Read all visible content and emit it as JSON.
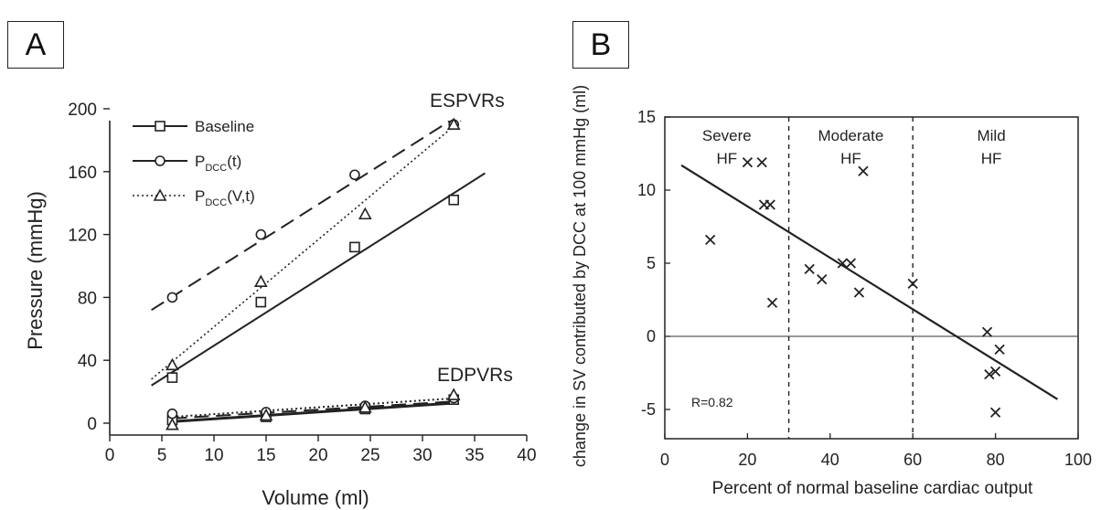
{
  "panels": {
    "a_label": "A",
    "b_label": "B"
  },
  "chart_data": [
    {
      "type": "scatter",
      "xlabel": "Volume (ml)",
      "ylabel": "Pressure (mmHg)",
      "xlim": [
        0,
        40
      ],
      "ylim": [
        0,
        200
      ],
      "x_ticks": [
        "0",
        "5",
        "10",
        "15",
        "20",
        "25",
        "30",
        "35",
        "40"
      ],
      "y_ticks": [
        "0",
        "40",
        "80",
        "120",
        "160",
        "200"
      ],
      "annotations": {
        "top": "ESPVRs",
        "bottom": "EDPVRs"
      },
      "legend": {
        "placement": "top-left",
        "entries": [
          "Baseline",
          "P",
          "(t)",
          "P",
          "(V,t)"
        ],
        "subscript": "DCC"
      },
      "series": [
        {
          "name": "Baseline",
          "marker": "square",
          "line": "solid",
          "points": [
            [
              6,
              29
            ],
            [
              14.5,
              77
            ],
            [
              23.5,
              112
            ],
            [
              33,
              142
            ]
          ],
          "fit": [
            [
              4,
              24
            ],
            [
              36,
              159
            ]
          ],
          "edpvr_points": [
            [
              6,
              2
            ],
            [
              15,
              4
            ],
            [
              24.5,
              9
            ],
            [
              33,
              15
            ]
          ],
          "edpvr_fit": [
            [
              6,
              1
            ],
            [
              33.5,
              13
            ]
          ]
        },
        {
          "name": "P(t)",
          "marker": "circle",
          "line": "dashed",
          "points": [
            [
              6,
              80
            ],
            [
              14.5,
              120
            ],
            [
              23.5,
              158
            ],
            [
              33,
              190
            ]
          ],
          "fit": [
            [
              4,
              72
            ],
            [
              34,
              198
            ]
          ],
          "edpvr_points": [
            [
              6,
              6
            ],
            [
              15,
              7
            ],
            [
              24.5,
              11
            ],
            [
              33,
              16
            ]
          ],
          "edpvr_fit": [
            [
              6,
              3
            ],
            [
              33.5,
              14
            ]
          ]
        },
        {
          "name": "P(V,t)",
          "marker": "triangle",
          "line": "dotted",
          "points": [
            [
              6,
              37
            ],
            [
              14.5,
              90
            ],
            [
              24.5,
              133
            ],
            [
              33,
              190
            ]
          ],
          "fit": [
            [
              4,
              28
            ],
            [
              35,
              200
            ]
          ],
          "edpvr_points": [
            [
              6,
              -1
            ],
            [
              15,
              5
            ],
            [
              24.5,
              10
            ],
            [
              33,
              18
            ]
          ],
          "edpvr_fit": [
            [
              6,
              4
            ],
            [
              33.5,
              16
            ]
          ]
        }
      ]
    },
    {
      "type": "scatter",
      "xlabel": "Percent of normal baseline cardiac output",
      "ylabel": "change in SV contributed by DCC at 100 mmHg (ml)",
      "xlim": [
        0,
        100
      ],
      "ylim": [
        -7,
        15
      ],
      "x_ticks": [
        "0",
        "20",
        "40",
        "60",
        "80",
        "100"
      ],
      "y_ticks": [
        "15",
        "10",
        "5",
        "0",
        "-5"
      ],
      "regions": [
        {
          "label1": "Severe",
          "label2": "HF",
          "center": 15
        },
        {
          "label1": "Moderate",
          "label2": "HF",
          "center": 45
        },
        {
          "label1": "Mild",
          "label2": "HF",
          "center": 79
        }
      ],
      "dividers": [
        30,
        60
      ],
      "annotation": "R=0.82",
      "fit": [
        [
          4,
          11.7
        ],
        [
          95,
          -4.3
        ]
      ],
      "points": [
        [
          11,
          6.6
        ],
        [
          20,
          11.9
        ],
        [
          23.5,
          11.9
        ],
        [
          24,
          9
        ],
        [
          25.5,
          9
        ],
        [
          26,
          2.3
        ],
        [
          35,
          4.6
        ],
        [
          38,
          3.9
        ],
        [
          43,
          5
        ],
        [
          45,
          5
        ],
        [
          47,
          3
        ],
        [
          48,
          11.3
        ],
        [
          60,
          3.6
        ],
        [
          78,
          0.3
        ],
        [
          78.5,
          -2.6
        ],
        [
          80,
          -2.4
        ],
        [
          81,
          -0.9
        ],
        [
          80,
          -5.2
        ]
      ]
    }
  ]
}
